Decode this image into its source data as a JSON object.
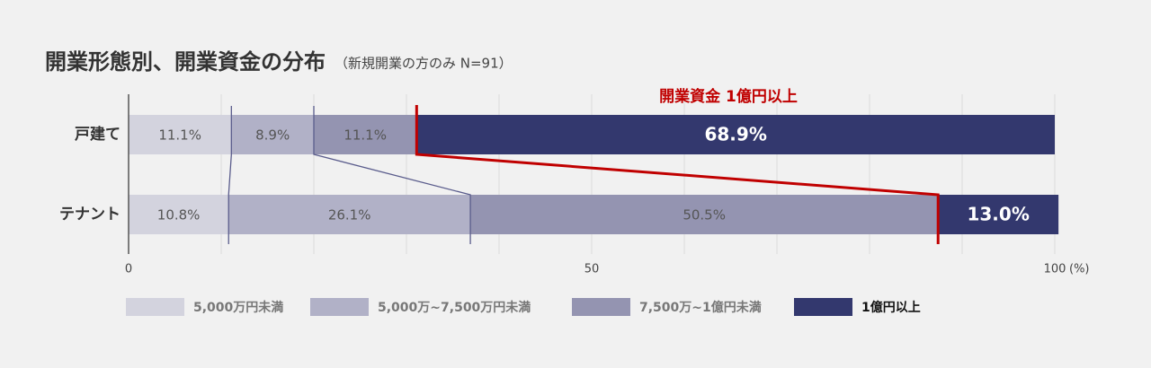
{
  "chart_data": {
    "type": "stacked-bar-horizontal",
    "title": "開業形態別、開業資金の分布",
    "subtitle": "（新規開業の方のみ N=91）",
    "annotation": "開業資金 1億円以上",
    "annotation_color": "#c00000",
    "x_unit_label": "(%)",
    "categories": [
      "戸建て",
      "テナント"
    ],
    "series": [
      {
        "name": "5,000万円未満",
        "color": "#d3d3de",
        "values": [
          11.1,
          10.8
        ],
        "value_labels": [
          "11.1%",
          "10.8%"
        ]
      },
      {
        "name": "5,000万~7,500万円未満",
        "color": "#b1b1c7",
        "values": [
          8.9,
          26.1
        ],
        "value_labels": [
          "8.9%",
          "26.1%"
        ]
      },
      {
        "name": "7,500万~1億円未満",
        "color": "#9494b1",
        "values": [
          11.1,
          50.5
        ],
        "value_labels": [
          "11.1%",
          "50.5%"
        ]
      },
      {
        "name": "1億円以上",
        "color": "#33386e",
        "values": [
          68.9,
          13.0
        ],
        "value_labels": [
          "68.9%",
          "13.0%"
        ]
      }
    ],
    "xlim": [
      0,
      100
    ],
    "xticks": [
      0,
      50,
      100
    ],
    "xgrid": [
      10,
      20,
      30,
      40,
      50,
      60,
      70,
      80,
      90,
      100
    ],
    "grid": true
  }
}
